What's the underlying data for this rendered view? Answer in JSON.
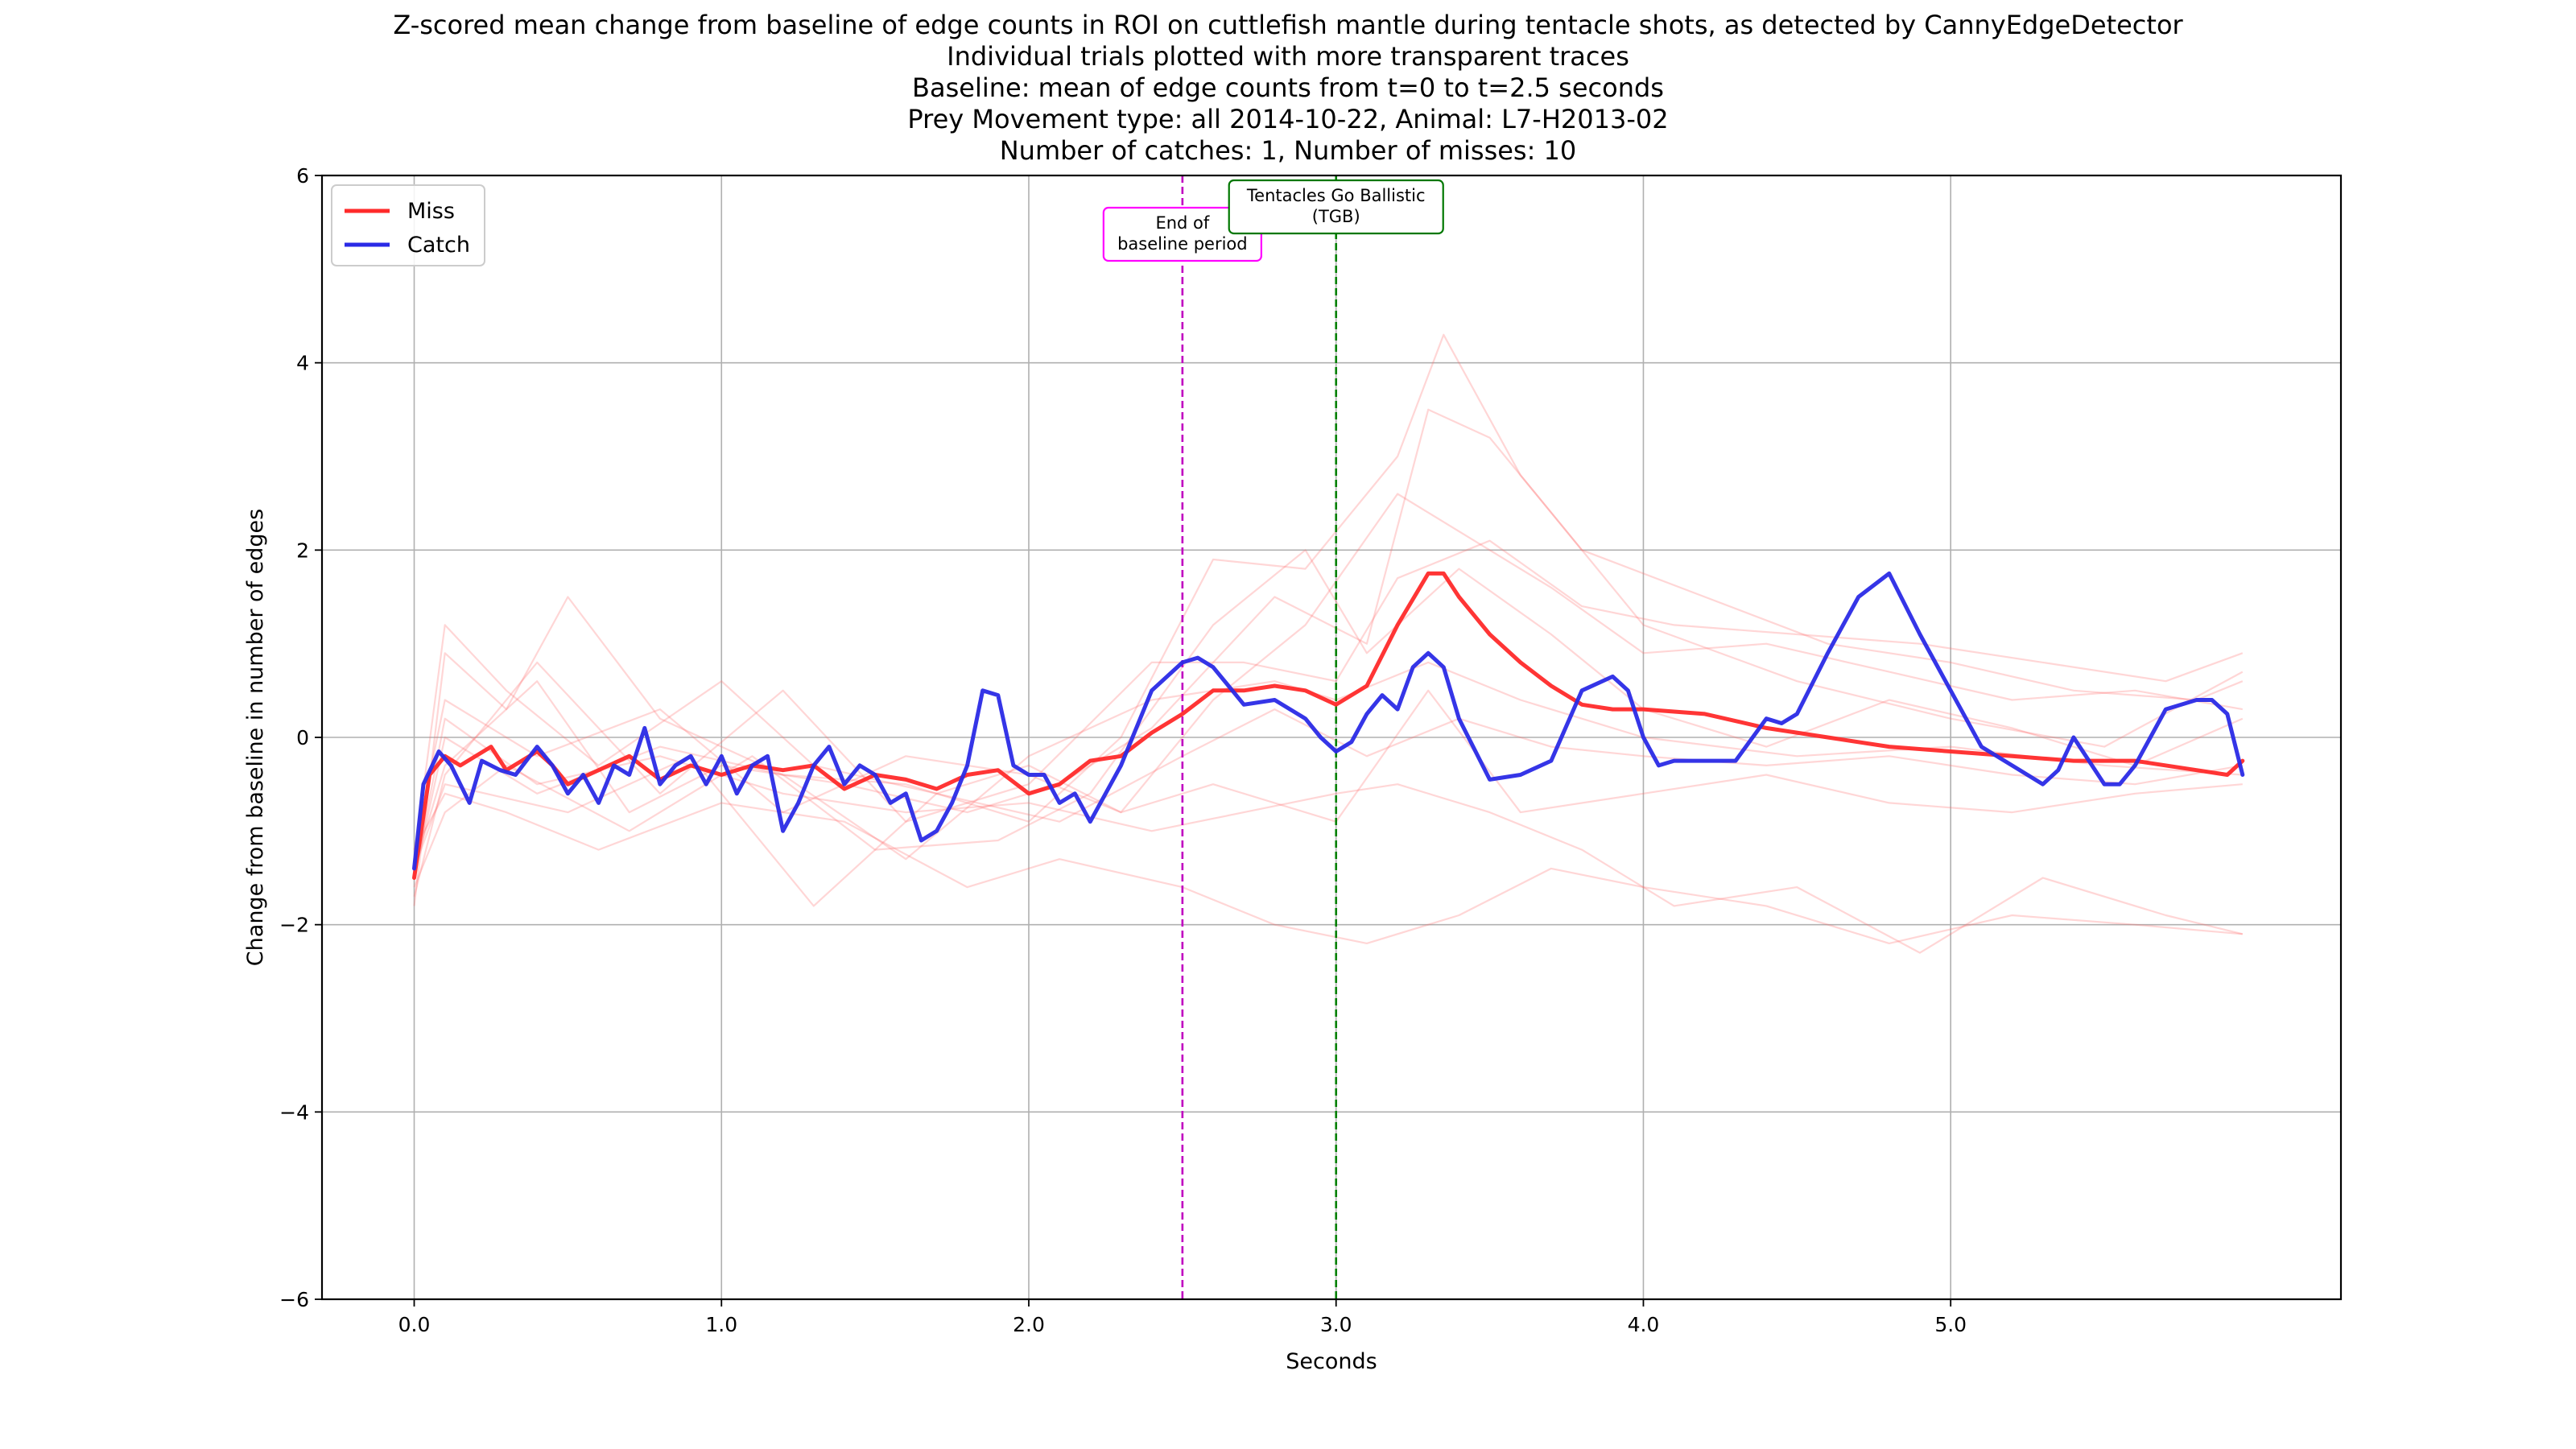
{
  "chart_data": {
    "type": "line",
    "title_lines": [
      "Z-scored mean change from baseline of edge counts in ROI on cuttlefish mantle during tentacle shots, as detected by CannyEdgeDetector",
      "Individual trials plotted with more transparent traces",
      "Baseline: mean of edge counts from t=0 to t=2.5 seconds",
      "Prey Movement type: all 2014-10-22, Animal: L7-H2013-02",
      "Number of catches: 1, Number of misses: 10"
    ],
    "xlabel": "Seconds",
    "ylabel": "Change from baseline in number of edges",
    "xlim": [
      -0.3,
      6.27
    ],
    "ylim": [
      -6,
      6
    ],
    "xticks": [
      0,
      1,
      2,
      3,
      4,
      5
    ],
    "xtick_labels": [
      "0.0",
      "1.0",
      "2.0",
      "3.0",
      "4.0",
      "5.0"
    ],
    "yticks": [
      -6,
      -4,
      -2,
      0,
      2,
      4,
      6
    ],
    "ytick_labels": [
      "−6",
      "−4",
      "−2",
      "0",
      "2",
      "4",
      "6"
    ],
    "grid": true,
    "legend": {
      "placement": "top-left",
      "entries": [
        {
          "label": "Miss",
          "color": "#ff2a2a"
        },
        {
          "label": "Catch",
          "color": "#2a2ae6"
        }
      ]
    },
    "annotations": [
      {
        "x": 2.5,
        "lines": [
          "End of",
          "baseline period"
        ],
        "line_color": "#c000c0",
        "box_color": "#ff00ff"
      },
      {
        "x": 3.0,
        "lines": [
          "Tentacles Go Ballistic",
          "(TGB)"
        ],
        "line_color": "#008000",
        "box_color": "#007700"
      }
    ],
    "series": [
      {
        "name": "Miss",
        "color": "#ff2a2a",
        "x": [
          0,
          0.05,
          0.1,
          0.15,
          0.2,
          0.25,
          0.3,
          0.35,
          0.4,
          0.45,
          0.5,
          0.6,
          0.7,
          0.8,
          0.9,
          1.0,
          1.1,
          1.2,
          1.3,
          1.4,
          1.5,
          1.6,
          1.7,
          1.8,
          1.9,
          2.0,
          2.1,
          2.2,
          2.3,
          2.4,
          2.5,
          2.6,
          2.7,
          2.8,
          2.9,
          3.0,
          3.1,
          3.2,
          3.3,
          3.35,
          3.4,
          3.5,
          3.6,
          3.7,
          3.8,
          3.9,
          4.0,
          4.2,
          4.4,
          4.6,
          4.8,
          5.0,
          5.2,
          5.4,
          5.6,
          5.8,
          5.9,
          5.95
        ],
        "y": [
          -1.5,
          -0.4,
          -0.2,
          -0.3,
          -0.2,
          -0.1,
          -0.35,
          -0.25,
          -0.15,
          -0.3,
          -0.5,
          -0.35,
          -0.2,
          -0.45,
          -0.3,
          -0.4,
          -0.3,
          -0.35,
          -0.3,
          -0.55,
          -0.4,
          -0.45,
          -0.55,
          -0.4,
          -0.35,
          -0.6,
          -0.5,
          -0.25,
          -0.2,
          0.05,
          0.25,
          0.5,
          0.5,
          0.55,
          0.5,
          0.35,
          0.55,
          1.2,
          1.75,
          1.75,
          1.5,
          1.1,
          0.8,
          0.55,
          0.35,
          0.3,
          0.3,
          0.25,
          0.1,
          0.0,
          -0.1,
          -0.15,
          -0.2,
          -0.25,
          -0.25,
          -0.35,
          -0.4,
          -0.25
        ]
      },
      {
        "name": "Catch",
        "color": "#2a2ae6",
        "x": [
          0,
          0.03,
          0.08,
          0.12,
          0.18,
          0.22,
          0.28,
          0.33,
          0.4,
          0.45,
          0.5,
          0.55,
          0.6,
          0.65,
          0.7,
          0.75,
          0.8,
          0.85,
          0.9,
          0.95,
          1.0,
          1.05,
          1.1,
          1.15,
          1.2,
          1.25,
          1.3,
          1.35,
          1.4,
          1.45,
          1.5,
          1.55,
          1.6,
          1.65,
          1.7,
          1.75,
          1.8,
          1.85,
          1.9,
          1.95,
          2.0,
          2.05,
          2.1,
          2.15,
          2.2,
          2.3,
          2.4,
          2.5,
          2.55,
          2.6,
          2.7,
          2.8,
          2.9,
          2.95,
          3.0,
          3.05,
          3.1,
          3.15,
          3.2,
          3.25,
          3.3,
          3.35,
          3.4,
          3.5,
          3.6,
          3.7,
          3.8,
          3.9,
          3.95,
          4.0,
          4.05,
          4.1,
          4.2,
          4.3,
          4.4,
          4.45,
          4.5,
          4.6,
          4.7,
          4.8,
          4.9,
          5.0,
          5.05,
          5.1,
          5.2,
          5.3,
          5.35,
          5.4,
          5.5,
          5.55,
          5.6,
          5.7,
          5.8,
          5.85,
          5.9,
          5.95
        ],
        "y": [
          -1.4,
          -0.5,
          -0.15,
          -0.3,
          -0.7,
          -0.25,
          -0.35,
          -0.4,
          -0.1,
          -0.3,
          -0.6,
          -0.4,
          -0.7,
          -0.3,
          -0.4,
          0.1,
          -0.5,
          -0.3,
          -0.2,
          -0.5,
          -0.2,
          -0.6,
          -0.3,
          -0.2,
          -1.0,
          -0.7,
          -0.3,
          -0.1,
          -0.5,
          -0.3,
          -0.4,
          -0.7,
          -0.6,
          -1.1,
          -1.0,
          -0.7,
          -0.3,
          0.5,
          0.45,
          -0.3,
          -0.4,
          -0.4,
          -0.7,
          -0.6,
          -0.9,
          -0.3,
          0.5,
          0.8,
          0.85,
          0.75,
          0.35,
          0.4,
          0.2,
          0.0,
          -0.15,
          -0.05,
          0.25,
          0.45,
          0.3,
          0.75,
          0.9,
          0.75,
          0.2,
          -0.45,
          -0.4,
          -0.25,
          0.5,
          0.65,
          0.5,
          0.0,
          -0.3,
          -0.25,
          -0.25,
          -0.25,
          0.2,
          0.15,
          0.25,
          0.9,
          1.5,
          1.75,
          1.1,
          0.5,
          0.2,
          -0.1,
          -0.3,
          -0.5,
          -0.35,
          0.0,
          -0.5,
          -0.5,
          -0.3,
          0.3,
          0.4,
          0.4,
          0.25,
          -0.4
        ]
      }
    ],
    "individual_trials": [
      {
        "x": [
          0,
          0.1,
          0.3,
          0.5,
          0.8,
          1.2,
          1.6,
          2.0,
          2.3,
          2.6,
          2.9,
          3.2,
          3.35,
          3.6,
          4.0,
          4.5,
          5.0,
          5.5,
          5.95
        ],
        "y": [
          -1.8,
          0.9,
          0.3,
          1.5,
          0.2,
          -0.4,
          -0.5,
          -0.9,
          0.0,
          1.9,
          1.8,
          3.0,
          4.3,
          2.8,
          1.2,
          0.6,
          0.2,
          -0.1,
          0.7
        ]
      },
      {
        "x": [
          0,
          0.1,
          0.3,
          0.6,
          1.0,
          1.4,
          1.8,
          2.1,
          2.5,
          2.8,
          3.1,
          3.4,
          3.7,
          4.0,
          4.4,
          4.8,
          5.2,
          5.6,
          5.95
        ],
        "y": [
          -1.2,
          -0.6,
          -0.8,
          -1.2,
          -0.7,
          -0.9,
          -1.6,
          -1.3,
          -1.6,
          -2.0,
          -2.2,
          -1.9,
          -1.4,
          -1.6,
          -1.8,
          -2.2,
          -1.9,
          -2.0,
          -2.1
        ]
      },
      {
        "x": [
          0,
          0.1,
          0.4,
          0.8,
          1.2,
          1.6,
          2.0,
          2.4,
          2.7,
          3.0,
          3.2,
          3.5,
          3.8,
          4.1,
          4.5,
          4.9,
          5.3,
          5.7,
          5.95
        ],
        "y": [
          -1.5,
          0.2,
          -0.5,
          -0.2,
          -0.6,
          -0.8,
          -0.7,
          -1.0,
          -0.8,
          -0.6,
          -0.5,
          -0.8,
          -1.2,
          -1.8,
          -1.6,
          -2.3,
          -1.5,
          -1.9,
          -2.1
        ]
      },
      {
        "x": [
          0,
          0.1,
          0.3,
          0.6,
          1.0,
          1.3,
          1.7,
          2.0,
          2.3,
          2.6,
          2.9,
          3.2,
          3.4,
          3.7,
          4.0,
          4.4,
          4.8,
          5.2,
          5.6,
          5.95
        ],
        "y": [
          -1.3,
          1.2,
          0.5,
          -0.3,
          0.6,
          -0.3,
          -0.6,
          -0.3,
          -0.8,
          0.4,
          1.2,
          2.6,
          2.2,
          1.6,
          0.9,
          1.0,
          0.7,
          0.4,
          0.5,
          0.3
        ]
      },
      {
        "x": [
          0,
          0.1,
          0.4,
          0.7,
          1.0,
          1.4,
          1.8,
          2.1,
          2.4,
          2.8,
          3.1,
          3.3,
          3.5,
          3.8,
          4.2,
          4.6,
          5.0,
          5.4,
          5.8,
          5.95
        ],
        "y": [
          -1.4,
          -0.3,
          0.6,
          -0.8,
          -0.3,
          -0.5,
          -0.8,
          -0.5,
          0.1,
          1.5,
          1.0,
          3.5,
          3.2,
          2.0,
          1.5,
          1.0,
          0.8,
          0.5,
          0.4,
          0.6
        ]
      },
      {
        "x": [
          0,
          0.1,
          0.3,
          0.7,
          1.1,
          1.5,
          1.9,
          2.2,
          2.6,
          2.9,
          3.1,
          3.4,
          3.7,
          4.0,
          4.4,
          4.8,
          5.2,
          5.6,
          5.95
        ],
        "y": [
          -1.6,
          -0.8,
          -0.3,
          -1.0,
          -0.2,
          -1.2,
          -1.1,
          -0.6,
          1.2,
          2.0,
          0.9,
          1.8,
          1.1,
          0.3,
          -0.1,
          0.4,
          0.1,
          -0.3,
          0.2
        ]
      },
      {
        "x": [
          0,
          0.1,
          0.4,
          0.8,
          1.2,
          1.6,
          2.0,
          2.3,
          2.6,
          3.0,
          3.3,
          3.6,
          4.0,
          4.4,
          4.8,
          5.2,
          5.6,
          5.95
        ],
        "y": [
          -1.2,
          0.4,
          -0.2,
          0.3,
          -0.8,
          -0.2,
          -0.4,
          -0.8,
          -0.5,
          -0.9,
          0.5,
          -0.8,
          -0.6,
          -0.4,
          -0.7,
          -0.8,
          -0.6,
          -0.5
        ]
      },
      {
        "x": [
          0,
          0.1,
          0.4,
          0.8,
          1.2,
          1.6,
          2.0,
          2.4,
          2.7,
          3.0,
          3.2,
          3.5,
          3.8,
          4.1,
          4.5,
          4.9,
          5.3,
          5.7,
          5.95
        ],
        "y": [
          -1.7,
          -0.4,
          0.8,
          -0.6,
          0.5,
          -0.9,
          -0.5,
          0.8,
          0.8,
          0.6,
          1.7,
          2.1,
          1.4,
          1.2,
          1.1,
          1.0,
          0.8,
          0.6,
          0.9
        ]
      },
      {
        "x": [
          0,
          0.1,
          0.5,
          0.9,
          1.3,
          1.7,
          2.1,
          2.5,
          2.8,
          3.1,
          3.4,
          3.7,
          4.0,
          4.4,
          4.8,
          5.2,
          5.6,
          5.95
        ],
        "y": [
          -1.4,
          -0.5,
          -0.8,
          -0.2,
          -1.8,
          -0.6,
          -0.9,
          -0.2,
          0.3,
          -0.2,
          0.2,
          -0.1,
          -0.2,
          -0.3,
          -0.2,
          -0.4,
          -0.5,
          -0.3
        ]
      },
      {
        "x": [
          0,
          0.1,
          0.4,
          0.8,
          1.2,
          1.6,
          2.0,
          2.4,
          2.8,
          3.0,
          3.3,
          3.6,
          4.0,
          4.5,
          5.0,
          5.5,
          5.95
        ],
        "y": [
          -1.5,
          0.0,
          -0.6,
          -0.1,
          -0.4,
          -1.3,
          -0.2,
          0.4,
          0.6,
          0.4,
          0.8,
          0.4,
          0.0,
          -0.2,
          -0.1,
          -0.3,
          -0.4
        ]
      }
    ]
  }
}
